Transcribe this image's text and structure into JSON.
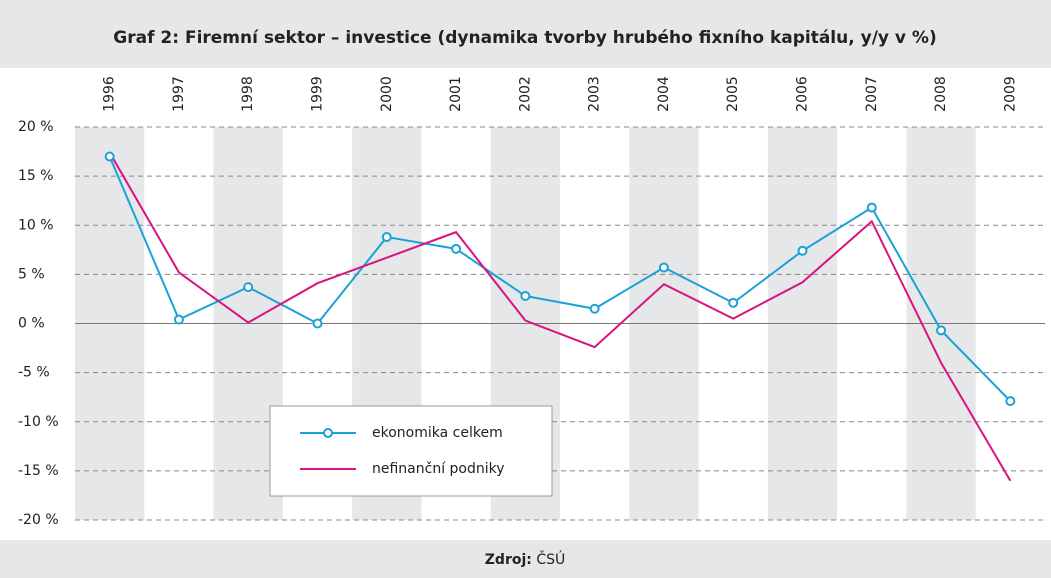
{
  "chart_data": {
    "type": "line",
    "title": "Graf 2: Firemní sektor – investice (dynamika tvorby hrubého fixního kapitálu, y/y v %)",
    "source_label": "Zdroj:",
    "source": "ČSÚ",
    "categories": [
      "1996",
      "1997",
      "1998",
      "1999",
      "2000",
      "2001",
      "2002",
      "2003",
      "2004",
      "2005",
      "2006",
      "2007",
      "2008",
      "2009"
    ],
    "series": [
      {
        "name": "ekonomika celkem",
        "color": "#1ba1d8",
        "markers": true,
        "values": [
          17.0,
          0.4,
          3.7,
          0.0,
          8.8,
          7.6,
          2.8,
          1.5,
          5.7,
          2.1,
          7.4,
          11.8,
          -0.7,
          -7.9
        ]
      },
      {
        "name": "nefinanční podniky",
        "color": "#d9137f",
        "markers": false,
        "values": [
          17.4,
          5.2,
          0.1,
          4.1,
          6.7,
          9.3,
          0.3,
          -2.4,
          4.0,
          0.5,
          4.2,
          10.4,
          -4.0,
          -16.0
        ]
      }
    ],
    "ylim": [
      -20,
      20
    ],
    "yticks": [
      {
        "value": -20,
        "label": "-20 %"
      },
      {
        "value": -15,
        "label": "-15 %"
      },
      {
        "value": -10,
        "label": "-10 %"
      },
      {
        "value": -5,
        "label": "-5 %"
      },
      {
        "value": 0,
        "label": "0 %"
      },
      {
        "value": 5,
        "label": "5 %"
      },
      {
        "value": 10,
        "label": "10 %"
      },
      {
        "value": 15,
        "label": "15 %"
      },
      {
        "value": 20,
        "label": "20 %"
      }
    ],
    "grid": true
  }
}
